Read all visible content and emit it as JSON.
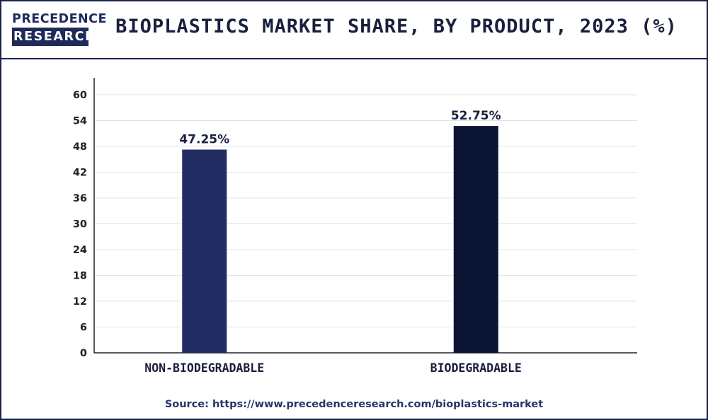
{
  "brand": {
    "logo_top": "PRECEDENCE",
    "logo_bottom": "RESEARCH"
  },
  "header": {
    "title": "BIOPLASTICS MARKET SHARE, BY PRODUCT, 2023 (%)"
  },
  "source": "Source: https://www.precedenceresearch.com/bioplastics-market",
  "colors": {
    "frame": "#1a2350",
    "non_biodegradable": "#232d63",
    "biodegradable": "#0b1433",
    "grid": "#e3e3e3",
    "axis": "#222222"
  },
  "chart_data": {
    "type": "bar",
    "title": "BIOPLASTICS MARKET SHARE, BY PRODUCT, 2023 (%)",
    "categories": [
      "NON-BIODEGRADABLE",
      "BIODEGRADABLE"
    ],
    "values": [
      47.25,
      52.75
    ],
    "data_labels": [
      "47.25%",
      "52.75%"
    ],
    "bar_colors": [
      "#232d63",
      "#0b1433"
    ],
    "ylim": [
      0,
      60
    ],
    "yticks": [
      0,
      6,
      12,
      18,
      24,
      30,
      36,
      42,
      48,
      54,
      60
    ],
    "grid": true,
    "legend": "none",
    "xlabel": "",
    "ylabel": ""
  }
}
